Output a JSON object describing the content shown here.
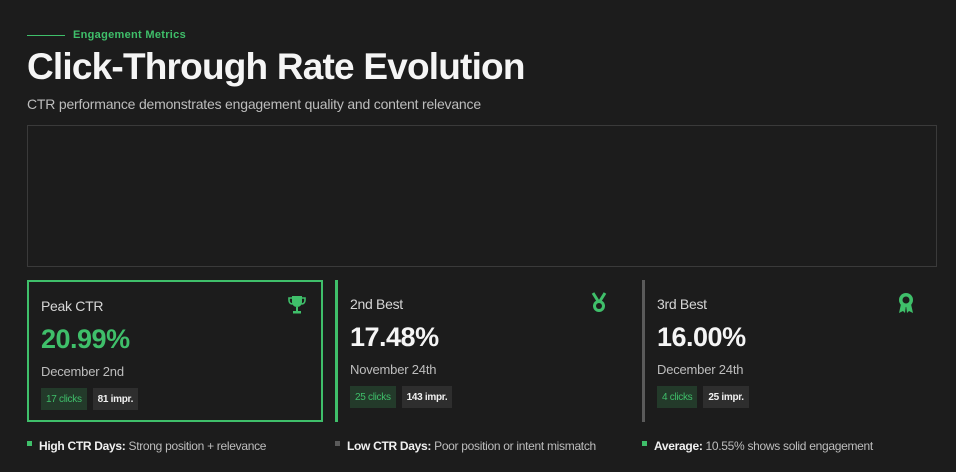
{
  "header": {
    "eyebrow": "Engagement Metrics",
    "title": "Click-Through Rate Evolution",
    "subtitle": "CTR performance demonstrates engagement quality and content relevance"
  },
  "colors": {
    "accent": "#3fbf6a",
    "background": "#1c1c1c",
    "muted": "#5a5a5a"
  },
  "cards": [
    {
      "label": "Peak CTR",
      "value": "20.99%",
      "date": "December 2nd",
      "clicks": "17 clicks",
      "impressions": "81 impr.",
      "icon": "trophy-icon"
    },
    {
      "label": "2nd Best",
      "value": "17.48%",
      "date": "November 24th",
      "clicks": "25 clicks",
      "impressions": "143 impr.",
      "icon": "medal-icon"
    },
    {
      "label": "3rd Best",
      "value": "16.00%",
      "date": "December 24th",
      "clicks": "4 clicks",
      "impressions": "25 impr.",
      "icon": "award-ribbon-icon"
    }
  ],
  "legend": [
    {
      "key": "High CTR Days:",
      "desc": "Strong position + relevance",
      "color": "#3fbf6a"
    },
    {
      "key": "Low CTR Days:",
      "desc": "Poor position or intent mismatch",
      "color": "#5a5a5a"
    },
    {
      "key": "Average:",
      "desc": "10.55% shows solid engagement",
      "color": "#3fbf6a"
    }
  ]
}
